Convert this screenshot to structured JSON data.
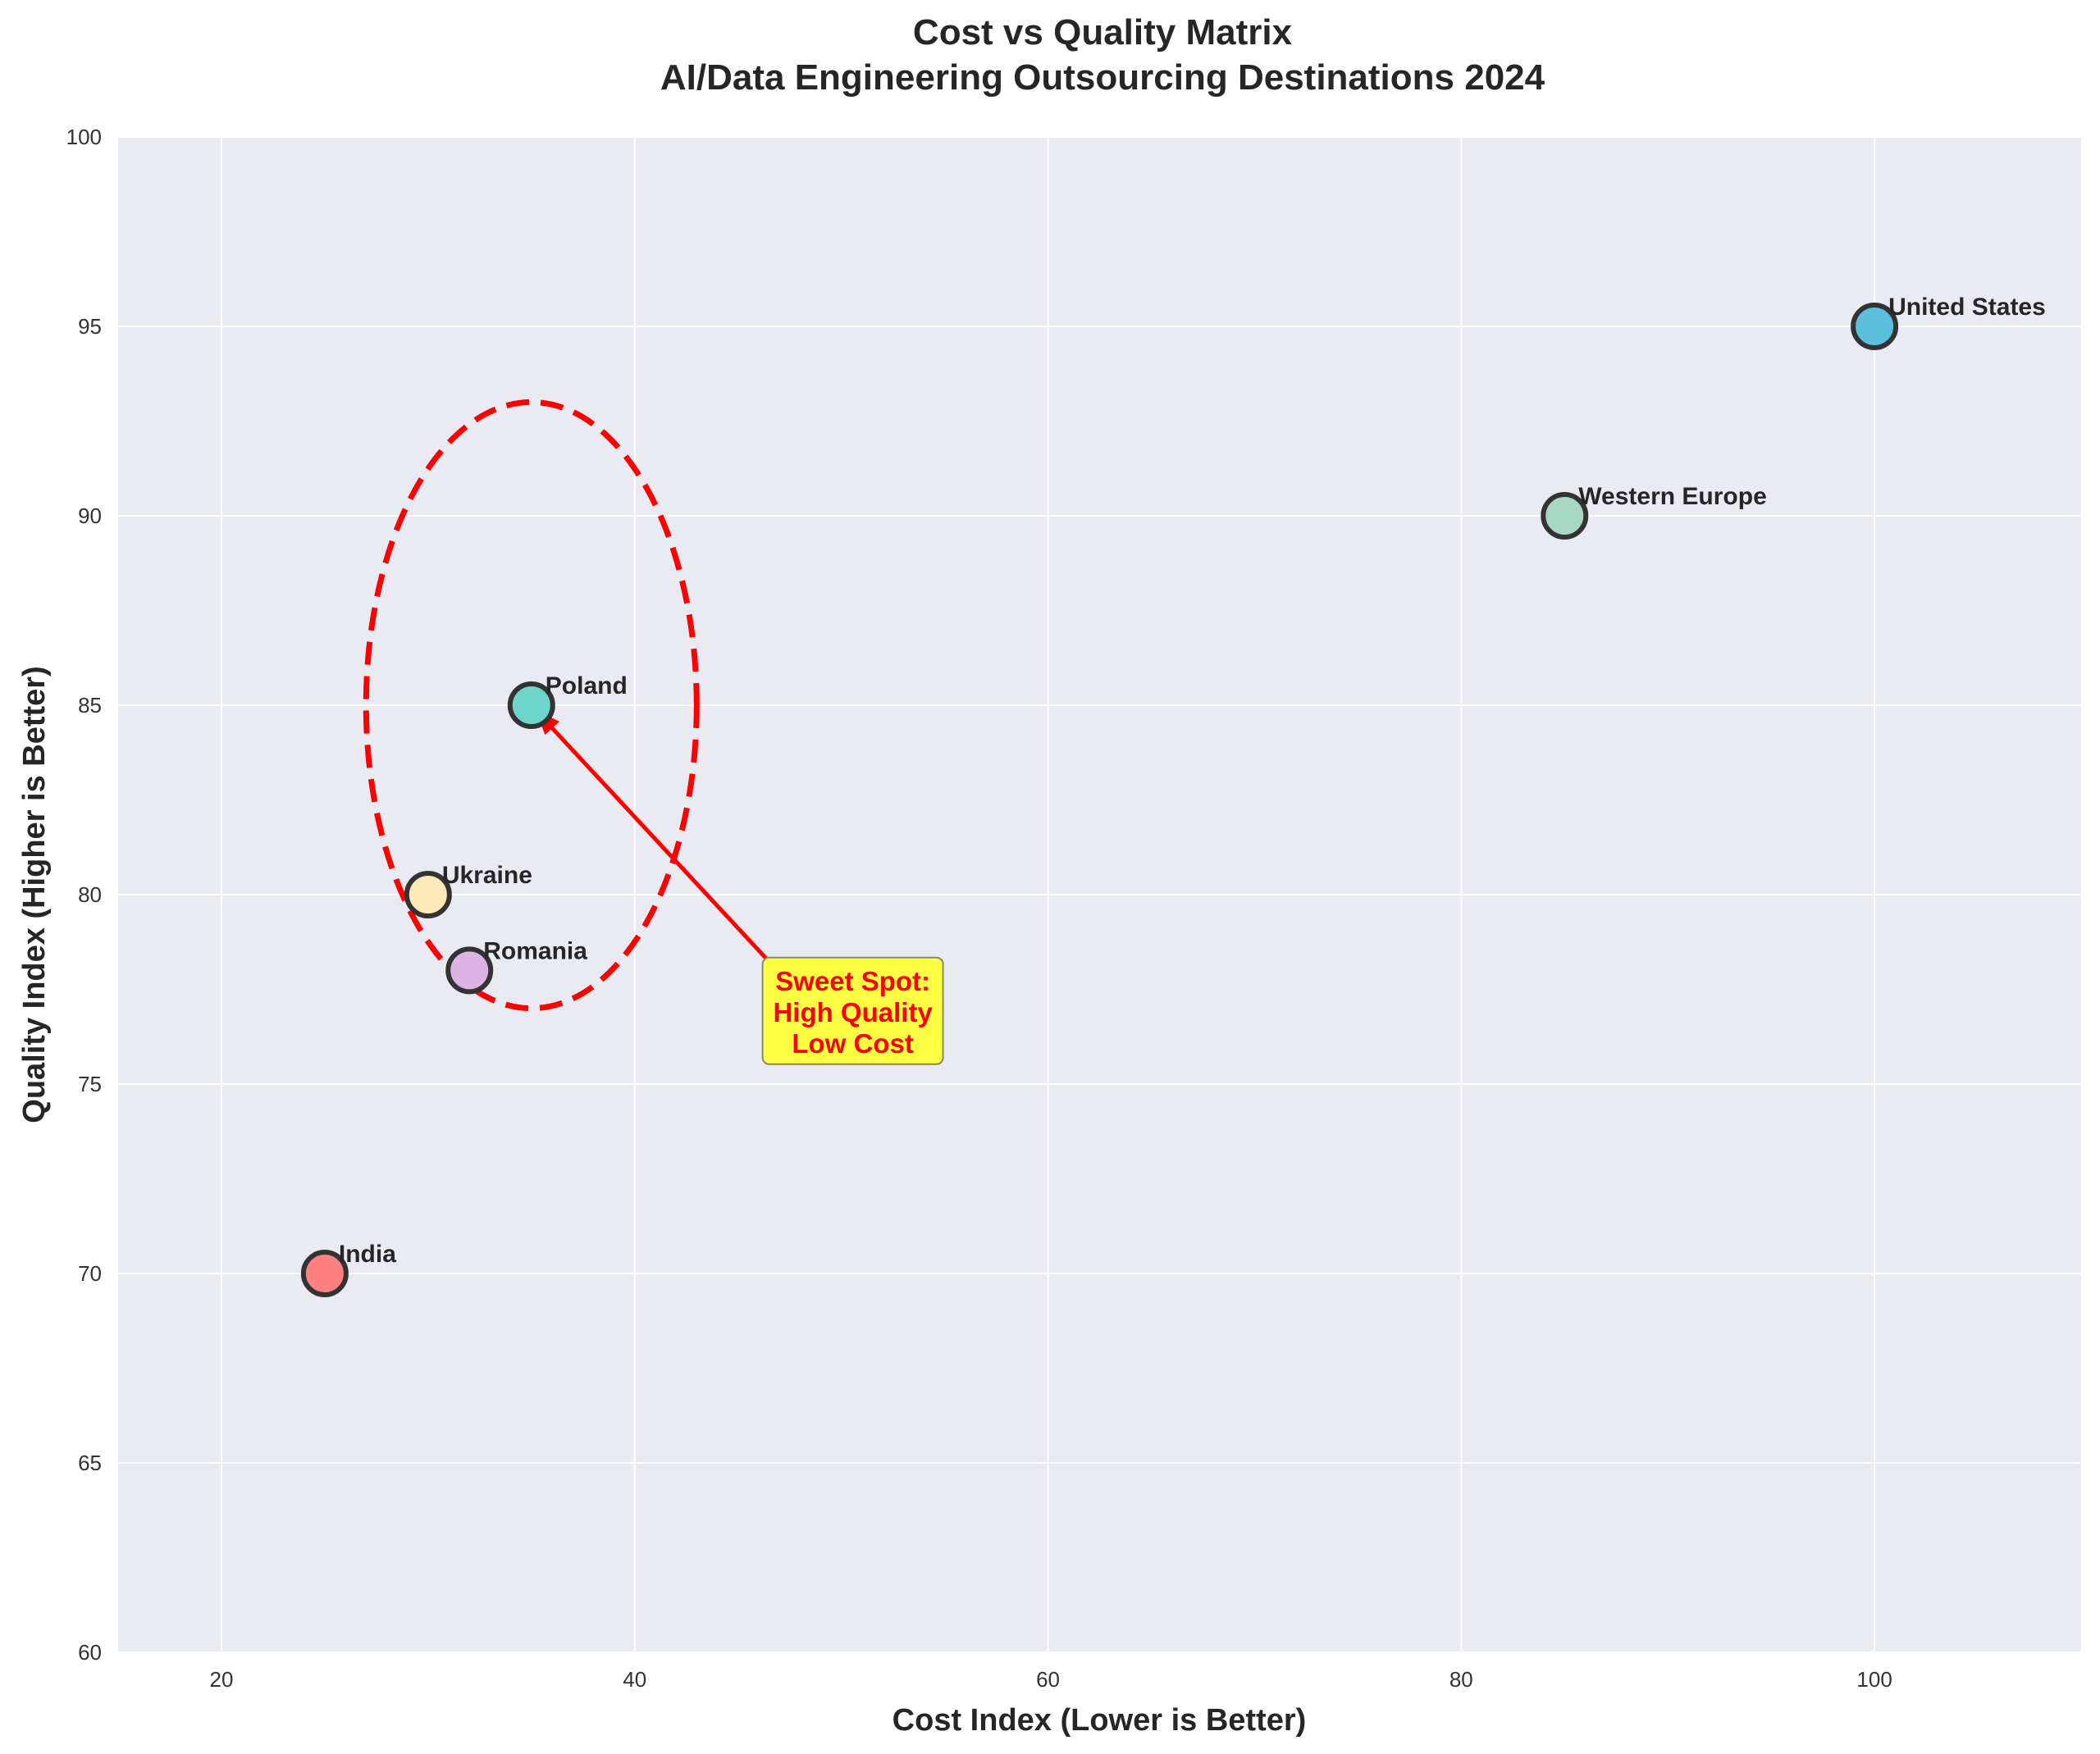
{
  "chart_data": {
    "type": "scatter",
    "title_line1": "Cost vs Quality Matrix",
    "title_line2": "AI/Data Engineering Outsourcing Destinations 2024",
    "xlabel": "Cost Index (Lower is Better)",
    "ylabel": "Quality Index (Higher is Better)",
    "xlim": [
      15,
      110
    ],
    "ylim": [
      60,
      100
    ],
    "xticks": [
      20,
      40,
      60,
      80,
      100
    ],
    "yticks": [
      60,
      65,
      70,
      75,
      80,
      85,
      90,
      95,
      100
    ],
    "grid": true,
    "background_color": "#eaeaf2",
    "points": [
      {
        "label": "United States",
        "x": 100,
        "y": 95,
        "color": "#5bc0de"
      },
      {
        "label": "Western Europe",
        "x": 85,
        "y": 90,
        "color": "#a8d8c4"
      },
      {
        "label": "Poland",
        "x": 35,
        "y": 85,
        "color": "#6dd5c9"
      },
      {
        "label": "Ukraine",
        "x": 30,
        "y": 80,
        "color": "#fde8b8"
      },
      {
        "label": "Romania",
        "x": 32,
        "y": 78,
        "color": "#dcb4e4"
      },
      {
        "label": "India",
        "x": 25,
        "y": 70,
        "color": "#ff8080"
      }
    ],
    "highlight_ellipse": {
      "center_x": 35,
      "center_y": 85,
      "x_radius": 8,
      "y_radius": 8,
      "color": "#ff0000",
      "style": "dashed"
    },
    "annotation": {
      "lines": [
        "Sweet Spot:",
        "High Quality",
        "Low Cost"
      ],
      "text_x": 50,
      "text_y": 76,
      "arrow_to_x": 35,
      "arrow_to_y": 85,
      "text_color": "#ff0000",
      "box_color": "#ffff44"
    }
  }
}
